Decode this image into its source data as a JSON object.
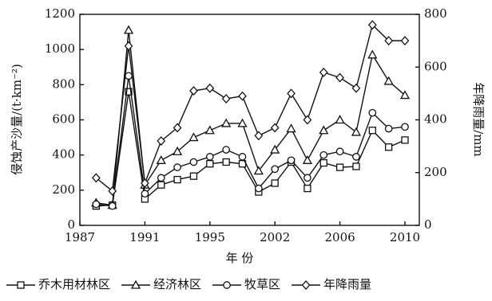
{
  "chart_data": {
    "type": "line",
    "x_label": "年 份",
    "y_label": "侵蚀产沙量/(t·km⁻²)",
    "y2_label": "年降雨量/mm",
    "categories": [
      "1987",
      null,
      null,
      null,
      "1991",
      null,
      null,
      null,
      "1995",
      null,
      null,
      null,
      "2002",
      null,
      null,
      null,
      "2006",
      null,
      null,
      null,
      "2010"
    ],
    "series": [
      {
        "name": "乔木用材林区",
        "marker": "square",
        "color": "#111111",
        "values": [
          null,
          110,
          115,
          760,
          150,
          230,
          260,
          280,
          350,
          360,
          350,
          190,
          240,
          360,
          210,
          355,
          330,
          335,
          540,
          445,
          485
        ]
      },
      {
        "name": "经济林区",
        "marker": "triangle",
        "color": "#111111",
        "values": [
          null,
          128,
          115,
          1110,
          230,
          370,
          420,
          500,
          540,
          580,
          580,
          310,
          430,
          550,
          370,
          540,
          600,
          530,
          970,
          820,
          740
        ]
      },
      {
        "name": "牧草区",
        "marker": "circle",
        "color": "#111111",
        "values": [
          null,
          120,
          110,
          850,
          180,
          270,
          330,
          360,
          390,
          430,
          390,
          210,
          320,
          370,
          270,
          400,
          420,
          390,
          640,
          550,
          560
        ]
      },
      {
        "name": "年降雨量",
        "marker": "diamond",
        "color": "#111111",
        "axis": "y2",
        "values": [
          null,
          180,
          130,
          680,
          160,
          320,
          370,
          510,
          520,
          480,
          490,
          340,
          370,
          500,
          400,
          580,
          560,
          520,
          760,
          700,
          700
        ]
      }
    ],
    "ylim": [
      0,
      1200
    ],
    "yticks": [
      0,
      200,
      400,
      600,
      800,
      1000,
      1200
    ],
    "y2lim": [
      0,
      800
    ],
    "y2ticks": [
      0,
      200,
      400,
      600,
      800
    ]
  }
}
